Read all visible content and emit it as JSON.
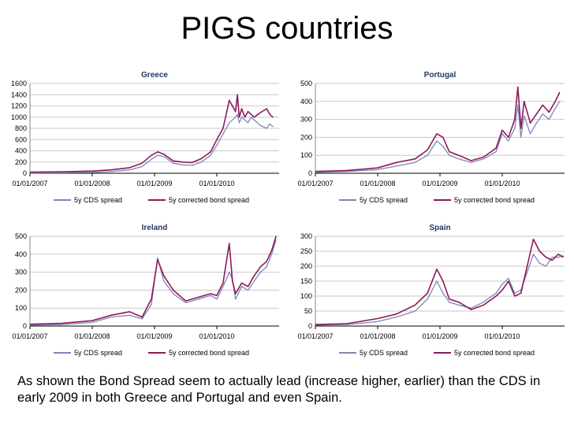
{
  "slide": {
    "title": "PIGS countries",
    "caption": "As shown the Bond Spread seem to actually lead (increase higher, earlier) than the CDS in early 2009 in both Greece and Portugal and even Spain."
  },
  "colors": {
    "cds": "#7f86b8",
    "bond": "#8b1a5b",
    "grid": "#c8c8c8",
    "axis": "#000000"
  },
  "chart_data": [
    {
      "type": "line",
      "title": "Greece",
      "ylim": [
        0,
        1600
      ],
      "yticks": [
        "0",
        "200",
        "400",
        "600",
        "800",
        "1000",
        "1200",
        "1400",
        "1600"
      ],
      "xticks": [
        "01/01/2007",
        "01/01/2008",
        "01/01/2009",
        "01/01/2010"
      ],
      "legend": [
        "5y CDS spread",
        "5y corrected bond spread"
      ],
      "x": [
        0,
        0.5,
        1,
        1.3,
        1.6,
        1.8,
        1.95,
        2.05,
        2.15,
        2.3,
        2.45,
        2.6,
        2.75,
        2.9,
        3.0,
        3.1,
        3.2,
        3.3,
        3.33,
        3.36,
        3.4,
        3.45,
        3.5,
        3.55,
        3.6,
        3.7,
        3.8,
        3.85,
        3.9
      ],
      "series": [
        {
          "name": "5y CDS spread",
          "values": [
            5,
            8,
            15,
            30,
            60,
            120,
            250,
            320,
            300,
            180,
            150,
            140,
            200,
            320,
            500,
            700,
            900,
            1000,
            1050,
            900,
            1000,
            950,
            900,
            1000,
            950,
            850,
            800,
            880,
            830
          ]
        },
        {
          "name": "5y corrected bond spread",
          "values": [
            20,
            25,
            40,
            60,
            100,
            180,
            320,
            380,
            340,
            220,
            200,
            190,
            260,
            380,
            600,
            800,
            1300,
            1100,
            1400,
            1000,
            1150,
            1000,
            1100,
            1050,
            1000,
            1080,
            1150,
            1050,
            1000
          ]
        }
      ]
    },
    {
      "type": "line",
      "title": "Portugal",
      "ylim": [
        0,
        500
      ],
      "yticks": [
        "0",
        "100",
        "200",
        "300",
        "400",
        "500"
      ],
      "xticks": [
        "01/01/2007",
        "01/01/2008",
        "01/01/2009",
        "01/01/2010"
      ],
      "legend": [
        "5y CDS spread",
        "5y corrected bond spread"
      ],
      "x": [
        0,
        0.5,
        1,
        1.3,
        1.6,
        1.8,
        1.95,
        2.05,
        2.15,
        2.3,
        2.5,
        2.7,
        2.9,
        3.0,
        3.1,
        3.2,
        3.25,
        3.3,
        3.35,
        3.45,
        3.55,
        3.65,
        3.75,
        3.85,
        3.92
      ],
      "series": [
        {
          "name": "5y CDS spread",
          "values": [
            5,
            10,
            20,
            40,
            60,
            100,
            180,
            150,
            100,
            80,
            60,
            80,
            120,
            220,
            180,
            250,
            380,
            200,
            320,
            220,
            280,
            330,
            300,
            360,
            400
          ]
        },
        {
          "name": "5y corrected bond spread",
          "values": [
            10,
            15,
            30,
            60,
            80,
            130,
            220,
            200,
            120,
            100,
            70,
            90,
            140,
            240,
            200,
            300,
            480,
            250,
            400,
            280,
            330,
            380,
            340,
            400,
            450
          ]
        }
      ]
    },
    {
      "type": "line",
      "title": "Ireland",
      "ylim": [
        0,
        500
      ],
      "yticks": [
        "0",
        "100",
        "200",
        "300",
        "400",
        "500"
      ],
      "xticks": [
        "01/01/2007",
        "01/01/2008",
        "01/01/2009",
        "01/01/2010"
      ],
      "legend": [
        "5y CDS spread",
        "5y corrected bond spread"
      ],
      "x": [
        0,
        0.5,
        1,
        1.3,
        1.6,
        1.8,
        1.95,
        2.05,
        2.15,
        2.3,
        2.5,
        2.7,
        2.9,
        3.0,
        3.1,
        3.2,
        3.25,
        3.3,
        3.4,
        3.5,
        3.6,
        3.7,
        3.8,
        3.88,
        3.95
      ],
      "series": [
        {
          "name": "5y CDS spread",
          "values": [
            5,
            8,
            20,
            50,
            60,
            40,
            120,
            380,
            250,
            180,
            130,
            150,
            170,
            150,
            220,
            300,
            260,
            150,
            220,
            200,
            250,
            300,
            330,
            400,
            480
          ]
        },
        {
          "name": "5y corrected bond spread",
          "values": [
            10,
            15,
            30,
            60,
            80,
            50,
            150,
            370,
            280,
            200,
            140,
            160,
            180,
            170,
            240,
            460,
            250,
            180,
            240,
            220,
            280,
            330,
            360,
            420,
            500
          ]
        }
      ]
    },
    {
      "type": "line",
      "title": "Spain",
      "ylim": [
        0,
        300
      ],
      "yticks": [
        "0",
        "50",
        "100",
        "150",
        "200",
        "250",
        "300"
      ],
      "xticks": [
        "01/01/2007",
        "01/01/2008",
        "01/01/2009",
        "01/01/2010"
      ],
      "legend": [
        "5y CDS spread",
        "5y corrected bond spread"
      ],
      "x": [
        0,
        0.5,
        1,
        1.3,
        1.6,
        1.8,
        1.95,
        2.05,
        2.15,
        2.3,
        2.5,
        2.7,
        2.9,
        3.0,
        3.1,
        3.2,
        3.3,
        3.4,
        3.5,
        3.6,
        3.7,
        3.8,
        3.9,
        3.98
      ],
      "series": [
        {
          "name": "5y CDS spread",
          "values": [
            3,
            5,
            15,
            30,
            50,
            90,
            150,
            110,
            80,
            70,
            60,
            80,
            110,
            140,
            160,
            110,
            120,
            180,
            240,
            210,
            200,
            230,
            230,
            235
          ]
        },
        {
          "name": "5y corrected bond spread",
          "values": [
            5,
            8,
            25,
            40,
            70,
            110,
            190,
            150,
            90,
            80,
            55,
            70,
            100,
            120,
            150,
            100,
            110,
            200,
            290,
            250,
            230,
            220,
            240,
            230
          ]
        }
      ]
    }
  ]
}
